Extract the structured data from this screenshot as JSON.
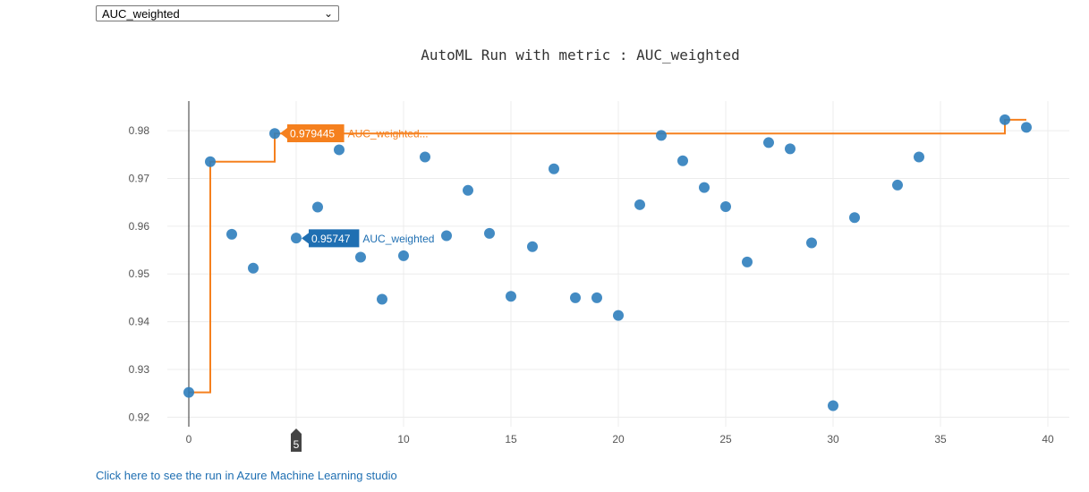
{
  "metric_select": {
    "selected": "AUC_weighted"
  },
  "link_text": "Click here to see the run in Azure Machine Learning studio",
  "chart_data": {
    "type": "scatter",
    "title": "AutoML Run with metric : AUC_weighted",
    "xlabel": "",
    "ylabel": "",
    "xlim": [
      -1,
      41
    ],
    "ylim": [
      0.918,
      0.9862
    ],
    "x_ticks": [
      0,
      5,
      10,
      15,
      20,
      25,
      30,
      35,
      40
    ],
    "y_ticks": [
      0.92,
      0.93,
      0.94,
      0.95,
      0.96,
      0.97,
      0.98
    ],
    "grid": true,
    "series": [
      {
        "color": "#2f7ebc",
        "points": [
          [
            0,
            0.9252
          ],
          [
            1,
            0.9735
          ],
          [
            2,
            0.9583
          ],
          [
            3,
            0.9512
          ],
          [
            4,
            0.9794
          ],
          [
            5,
            0.9575
          ],
          [
            6,
            0.964
          ],
          [
            7,
            0.976
          ],
          [
            8,
            0.9535
          ],
          [
            9,
            0.9447
          ],
          [
            10,
            0.9538
          ],
          [
            11,
            0.9745
          ],
          [
            12,
            0.958
          ],
          [
            13,
            0.9675
          ],
          [
            14,
            0.9585
          ],
          [
            15,
            0.9453
          ],
          [
            16,
            0.9557
          ],
          [
            17,
            0.972
          ],
          [
            18,
            0.945
          ],
          [
            19,
            0.945
          ],
          [
            20,
            0.9413
          ],
          [
            21,
            0.9645
          ],
          [
            22,
            0.979
          ],
          [
            23,
            0.9737
          ],
          [
            24,
            0.9681
          ],
          [
            25,
            0.9641
          ],
          [
            26,
            0.9525
          ],
          [
            27,
            0.9775
          ],
          [
            28,
            0.9762
          ],
          [
            29,
            0.9565
          ],
          [
            30,
            0.9224
          ],
          [
            31,
            0.9618
          ],
          [
            33,
            0.9686
          ],
          [
            34,
            0.9745
          ],
          [
            38,
            0.9823
          ],
          [
            39,
            0.9807
          ]
        ]
      },
      {
        "color": "#f5801e",
        "step_points": [
          [
            0,
            0.9252
          ],
          [
            1,
            0.9735
          ],
          [
            4,
            0.9794
          ],
          [
            38,
            0.9823
          ],
          [
            39,
            0.9823
          ]
        ]
      }
    ],
    "hover": {
      "x": 5,
      "spike_color": "#333333",
      "x_axis_label": "5",
      "labels": [
        {
          "value": "0.979445",
          "name": "AUC_weighted...",
          "color": "#f5801e",
          "x": 4,
          "y": 0.979445
        },
        {
          "value": "0.95747",
          "name": "AUC_weighted",
          "color": "#1f6fb2",
          "x": 5,
          "y": 0.95747
        }
      ]
    }
  }
}
